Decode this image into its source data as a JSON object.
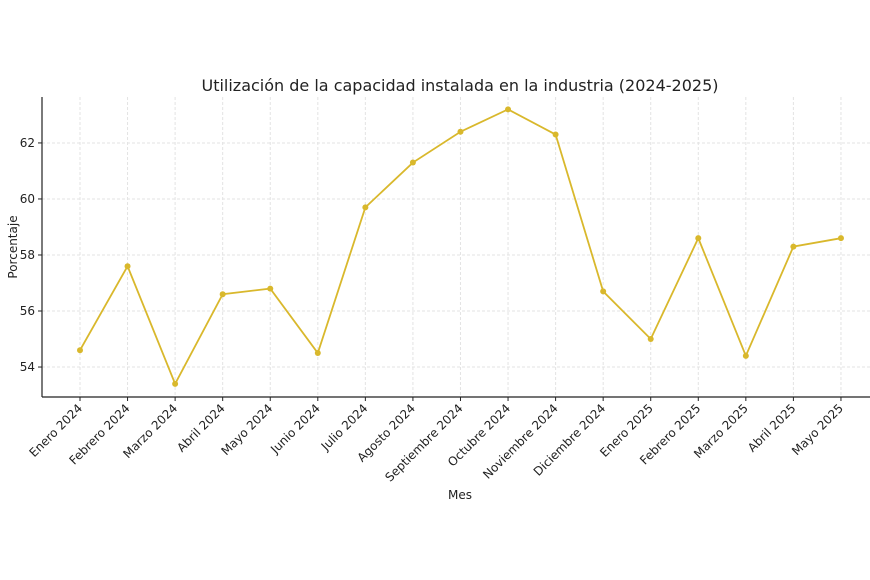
{
  "chart_data": {
    "type": "line",
    "title": "Utilización de la capacidad instalada en la industria (2024-2025)",
    "xlabel": "Mes",
    "ylabel": "Porcentaje",
    "categories": [
      "Enero 2024",
      "Febrero 2024",
      "Marzo 2024",
      "Abril 2024",
      "Mayo 2024",
      "Junio 2024",
      "Julio 2024",
      "Agosto 2024",
      "Septiembre 2024",
      "Octubre 2024",
      "Noviembre 2024",
      "Diciembre 2024",
      "Enero 2025",
      "Febrero 2025",
      "Marzo 2025",
      "Abril 2025",
      "Mayo 2025"
    ],
    "values": [
      54.6,
      57.6,
      53.4,
      56.6,
      56.8,
      54.5,
      59.7,
      61.3,
      62.4,
      63.2,
      62.3,
      56.7,
      55.0,
      58.6,
      54.4,
      58.3,
      58.6
    ],
    "yticks": [
      54,
      56,
      58,
      60,
      62
    ],
    "ylim": [
      52.93,
      63.64
    ],
    "grid": true,
    "marker": "circle",
    "line_color": "#d9b82c"
  }
}
